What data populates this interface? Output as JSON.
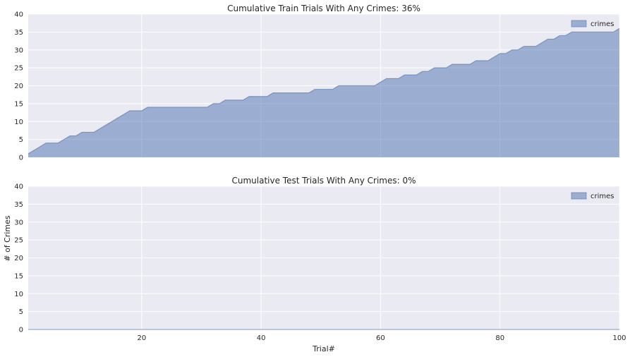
{
  "colors": {
    "plot_bg": "#EAEAF2",
    "grid": "#FFFFFF",
    "fill": "#4C72B0",
    "fill_alpha": 0.5
  },
  "chart_data": [
    {
      "type": "area",
      "title": "Cumulative Train Trials With Any Crimes: 36%",
      "xlabel": "",
      "ylabel": "",
      "xlim": [
        1,
        100
      ],
      "ylim": [
        0,
        40
      ],
      "yticks": [
        0,
        5,
        10,
        15,
        20,
        25,
        30,
        35,
        40
      ],
      "xticks": [
        20,
        40,
        60,
        80,
        100
      ],
      "show_xtick_labels": false,
      "grid": true,
      "legend": "top-right",
      "series": [
        {
          "name": "crimes",
          "x": [
            1,
            2,
            3,
            4,
            5,
            6,
            7,
            8,
            9,
            10,
            11,
            12,
            13,
            14,
            15,
            16,
            17,
            18,
            19,
            20,
            21,
            22,
            23,
            24,
            25,
            26,
            27,
            28,
            29,
            30,
            31,
            32,
            33,
            34,
            35,
            36,
            37,
            38,
            39,
            40,
            41,
            42,
            43,
            44,
            45,
            46,
            47,
            48,
            49,
            50,
            51,
            52,
            53,
            54,
            55,
            56,
            57,
            58,
            59,
            60,
            61,
            62,
            63,
            64,
            65,
            66,
            67,
            68,
            69,
            70,
            71,
            72,
            73,
            74,
            75,
            76,
            77,
            78,
            79,
            80,
            81,
            82,
            83,
            84,
            85,
            86,
            87,
            88,
            89,
            90,
            91,
            92,
            93,
            94,
            95,
            96,
            97,
            98,
            99,
            100
          ],
          "values": [
            1,
            2,
            3,
            4,
            4,
            4,
            5,
            6,
            6,
            7,
            7,
            7,
            8,
            9,
            10,
            11,
            12,
            13,
            13,
            13,
            14,
            14,
            14,
            14,
            14,
            14,
            14,
            14,
            14,
            14,
            14,
            15,
            15,
            16,
            16,
            16,
            16,
            17,
            17,
            17,
            17,
            18,
            18,
            18,
            18,
            18,
            18,
            18,
            19,
            19,
            19,
            19,
            20,
            20,
            20,
            20,
            20,
            20,
            20,
            21,
            22,
            22,
            22,
            23,
            23,
            23,
            24,
            24,
            25,
            25,
            25,
            26,
            26,
            26,
            26,
            27,
            27,
            27,
            28,
            29,
            29,
            30,
            30,
            31,
            31,
            31,
            32,
            33,
            33,
            34,
            34,
            35,
            35,
            35,
            35,
            35,
            35,
            35,
            35,
            36
          ]
        }
      ]
    },
    {
      "type": "area",
      "title": "Cumulative Test Trials With Any Crimes: 0%",
      "xlabel": "Trial#",
      "ylabel": "# of Crimes",
      "xlim": [
        1,
        100
      ],
      "ylim": [
        0,
        40
      ],
      "yticks": [
        0,
        5,
        10,
        15,
        20,
        25,
        30,
        35,
        40
      ],
      "xticks": [
        20,
        40,
        60,
        80,
        100
      ],
      "show_xtick_labels": true,
      "grid": true,
      "legend": "top-right",
      "series": [
        {
          "name": "crimes",
          "x": [
            1,
            100
          ],
          "values": [
            0,
            0
          ]
        }
      ]
    }
  ]
}
